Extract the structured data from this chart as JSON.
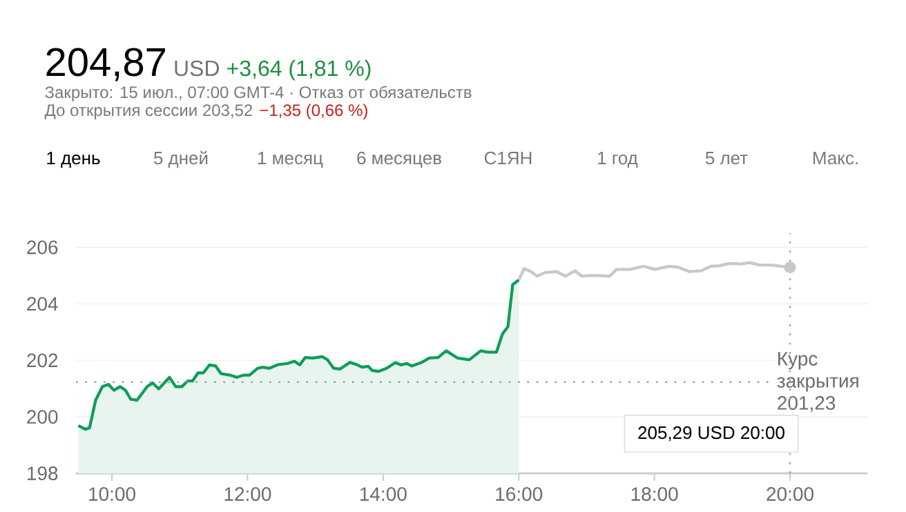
{
  "chart_data": {
    "type": "line",
    "title": "204,87",
    "annotations": [
      "USD",
      "+3,64 (1,81 %)",
      "Закрыто: 15 июл., 07:00 GMT-4 · Отказ от обязательств",
      "До открытия сессии 203,52",
      "−1,35 (0,66 %)",
      "1 день",
      "5 дней",
      "1 месяц",
      "6 месяцев",
      "С1ЯН",
      "1 год",
      "5 лет",
      "Макс.",
      "205,29 USD  20:00"
    ],
    "xlim": [
      9.47,
      21.14
    ],
    "xticks": [
      {
        "value": 10,
        "label": "10:00"
      },
      {
        "value": 12,
        "label": "12:00"
      },
      {
        "value": 14,
        "label": "14:00"
      },
      {
        "value": 16,
        "label": "16:00"
      },
      {
        "value": 18,
        "label": "18:00"
      },
      {
        "value": 20,
        "label": "20:00"
      }
    ],
    "ylim": [
      198,
      206.5
    ],
    "yticks": [
      198,
      200,
      202,
      204,
      206
    ],
    "grid": "y",
    "ref_lines": [
      {
        "axis": "y",
        "value": 201.23,
        "label": "Курс закрытия 201,23",
        "color": "#9aa0a6",
        "line_style": "dotted"
      },
      {
        "axis": "x",
        "value": 20,
        "color": "#9aa0a6",
        "line_style": "dotted"
      }
    ],
    "series": [
      {
        "type": "area",
        "color": "#0f9d58",
        "x": [
          9.505,
          9.61,
          9.67,
          9.76,
          9.86,
          9.95,
          10.03,
          10.12,
          10.2,
          10.28,
          10.37,
          10.52,
          10.6,
          10.69,
          10.85,
          10.94,
          11.03,
          11.12,
          11.19,
          11.27,
          11.35,
          11.44,
          11.53,
          11.61,
          11.74,
          11.84,
          11.95,
          12.03,
          12.15,
          12.22,
          12.32,
          12.45,
          12.59,
          12.69,
          12.77,
          12.85,
          12.96,
          13.1,
          13.18,
          13.27,
          13.36,
          13.51,
          13.61,
          13.69,
          13.78,
          13.84,
          13.93,
          14.05,
          14.18,
          14.26,
          14.35,
          14.42,
          14.56,
          14.68,
          14.81,
          14.93,
          15.1,
          15.27,
          15.44,
          15.54,
          15.67,
          15.76,
          15.84,
          15.91,
          16.0
        ],
        "values": [
          199.69,
          199.56,
          199.61,
          200.59,
          201.07,
          201.15,
          200.94,
          201.07,
          200.94,
          200.62,
          200.59,
          201.07,
          201.2,
          200.99,
          201.4,
          201.07,
          201.07,
          201.27,
          201.27,
          201.56,
          201.56,
          201.84,
          201.8,
          201.53,
          201.48,
          201.4,
          201.48,
          201.48,
          201.72,
          201.76,
          201.72,
          201.85,
          201.89,
          201.97,
          201.84,
          202.1,
          202.08,
          202.13,
          202.02,
          201.72,
          201.69,
          201.93,
          201.85,
          201.76,
          201.79,
          201.64,
          201.61,
          201.72,
          201.92,
          201.84,
          201.89,
          201.8,
          201.92,
          202.08,
          202.1,
          202.34,
          202.08,
          202.02,
          202.34,
          202.29,
          202.29,
          202.94,
          203.19,
          204.68,
          204.85
        ]
      },
      {
        "color": "#c8c8c8",
        "x": [
          16.0,
          16.08,
          16.18,
          16.27,
          16.39,
          16.56,
          16.69,
          16.83,
          16.93,
          17.1,
          17.34,
          17.44,
          17.64,
          17.84,
          18.01,
          18.22,
          18.35,
          18.52,
          18.69,
          18.83,
          18.96,
          19.1,
          19.27,
          19.4,
          19.54,
          19.75,
          20.0
        ],
        "values": [
          204.85,
          205.25,
          205.14,
          204.98,
          205.11,
          205.14,
          204.98,
          205.17,
          204.98,
          205.01,
          204.98,
          205.22,
          205.22,
          205.33,
          205.22,
          205.33,
          205.3,
          205.14,
          205.17,
          205.33,
          205.35,
          205.43,
          205.41,
          205.46,
          205.38,
          205.37,
          205.29
        ]
      },
      {
        "type": "scatter",
        "color": "#c8c8c8",
        "marker": "circle",
        "x": [
          20
        ],
        "values": [
          205.29
        ]
      }
    ]
  }
}
